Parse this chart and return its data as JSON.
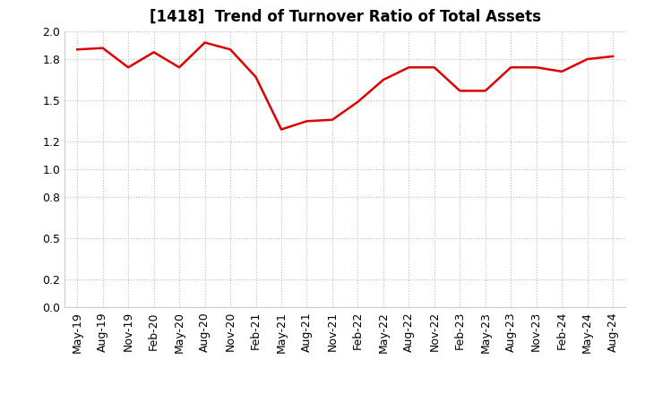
{
  "title": "[1418]  Trend of Turnover Ratio of Total Assets",
  "x_labels": [
    "May-19",
    "Aug-19",
    "Nov-19",
    "Feb-20",
    "May-20",
    "Aug-20",
    "Nov-20",
    "Feb-21",
    "May-21",
    "Aug-21",
    "Nov-21",
    "Feb-22",
    "May-22",
    "Aug-22",
    "Nov-22",
    "Feb-23",
    "May-23",
    "Aug-23",
    "Nov-23",
    "Feb-24",
    "May-24",
    "Aug-24"
  ],
  "values": [
    1.87,
    1.88,
    1.74,
    1.85,
    1.74,
    1.92,
    1.87,
    1.67,
    1.29,
    1.35,
    1.36,
    1.49,
    1.65,
    1.74,
    1.74,
    1.57,
    1.57,
    1.74,
    1.74,
    1.71,
    1.8,
    1.82
  ],
  "line_color": "#dd0000",
  "background_color": "#ffffff",
  "grid_color": "#bbbbbb",
  "ylim": [
    0.0,
    2.0
  ],
  "yticks": [
    0.0,
    0.2,
    0.5,
    0.8,
    1.0,
    1.2,
    1.5,
    1.8,
    2.0
  ],
  "title_fontsize": 12,
  "tick_fontsize": 9
}
